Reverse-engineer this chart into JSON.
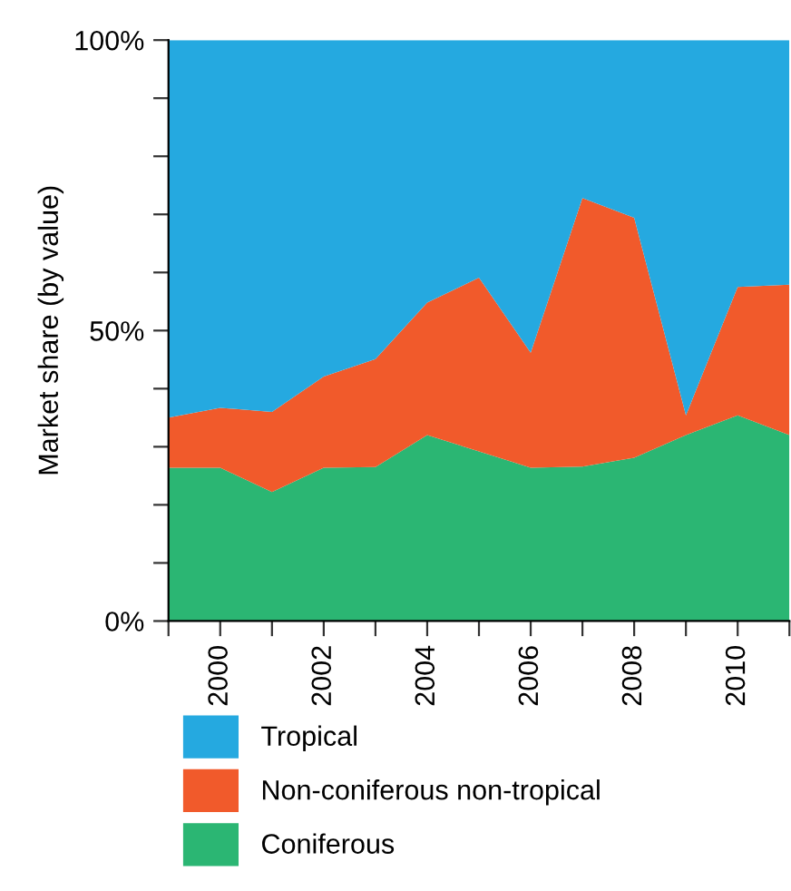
{
  "chart_data": {
    "type": "area",
    "stacked": true,
    "ylabel": "Market share (by value)",
    "x": [
      1999,
      2000,
      2001,
      2002,
      2003,
      2004,
      2005,
      2006,
      2007,
      2008,
      2009,
      2010,
      2011
    ],
    "series": [
      {
        "name": "Coniferous",
        "color": "#2bb673",
        "values": [
          26.4,
          26.4,
          22.2,
          26.4,
          26.5,
          32.0,
          29.2,
          26.4,
          26.6,
          28.1,
          32.0,
          35.4,
          32.0
        ]
      },
      {
        "name": "Non-coniferous non-tropical",
        "color": "#f15a2b",
        "values": [
          8.6,
          10.3,
          13.8,
          15.7,
          18.6,
          22.8,
          29.9,
          19.8,
          46.2,
          41.3,
          3.4,
          22.1,
          25.9
        ]
      },
      {
        "name": "Tropical",
        "color": "#25a9e0",
        "values": [
          65.0,
          63.3,
          64.0,
          57.9,
          54.9,
          45.2,
          40.9,
          53.8,
          27.2,
          30.6,
          64.6,
          42.5,
          42.1
        ]
      }
    ],
    "xlim": [
      1999,
      2011
    ],
    "xticks": [
      {
        "value": 1999,
        "label": null
      },
      2000,
      {
        "value": 2001,
        "label": null
      },
      2002,
      {
        "value": 2003,
        "label": null
      },
      2004,
      {
        "value": 2005,
        "label": null
      },
      2006,
      {
        "value": 2007,
        "label": null
      },
      2008,
      {
        "value": 2009,
        "label": null
      },
      2010,
      {
        "value": 2011,
        "label": null
      }
    ],
    "ylim": [
      0,
      100
    ],
    "yticks": [
      {
        "value": 0,
        "label": "0%"
      },
      {
        "value": 10,
        "label": null
      },
      {
        "value": 20,
        "label": null
      },
      {
        "value": 30,
        "label": null
      },
      {
        "value": 40,
        "label": null
      },
      {
        "value": 50,
        "label": "50%"
      },
      {
        "value": 60,
        "label": null
      },
      {
        "value": 70,
        "label": null
      },
      {
        "value": 80,
        "label": null
      },
      {
        "value": 90,
        "label": null
      },
      {
        "value": 100,
        "label": "100%"
      }
    ],
    "grid": false,
    "legend": "bottom"
  }
}
